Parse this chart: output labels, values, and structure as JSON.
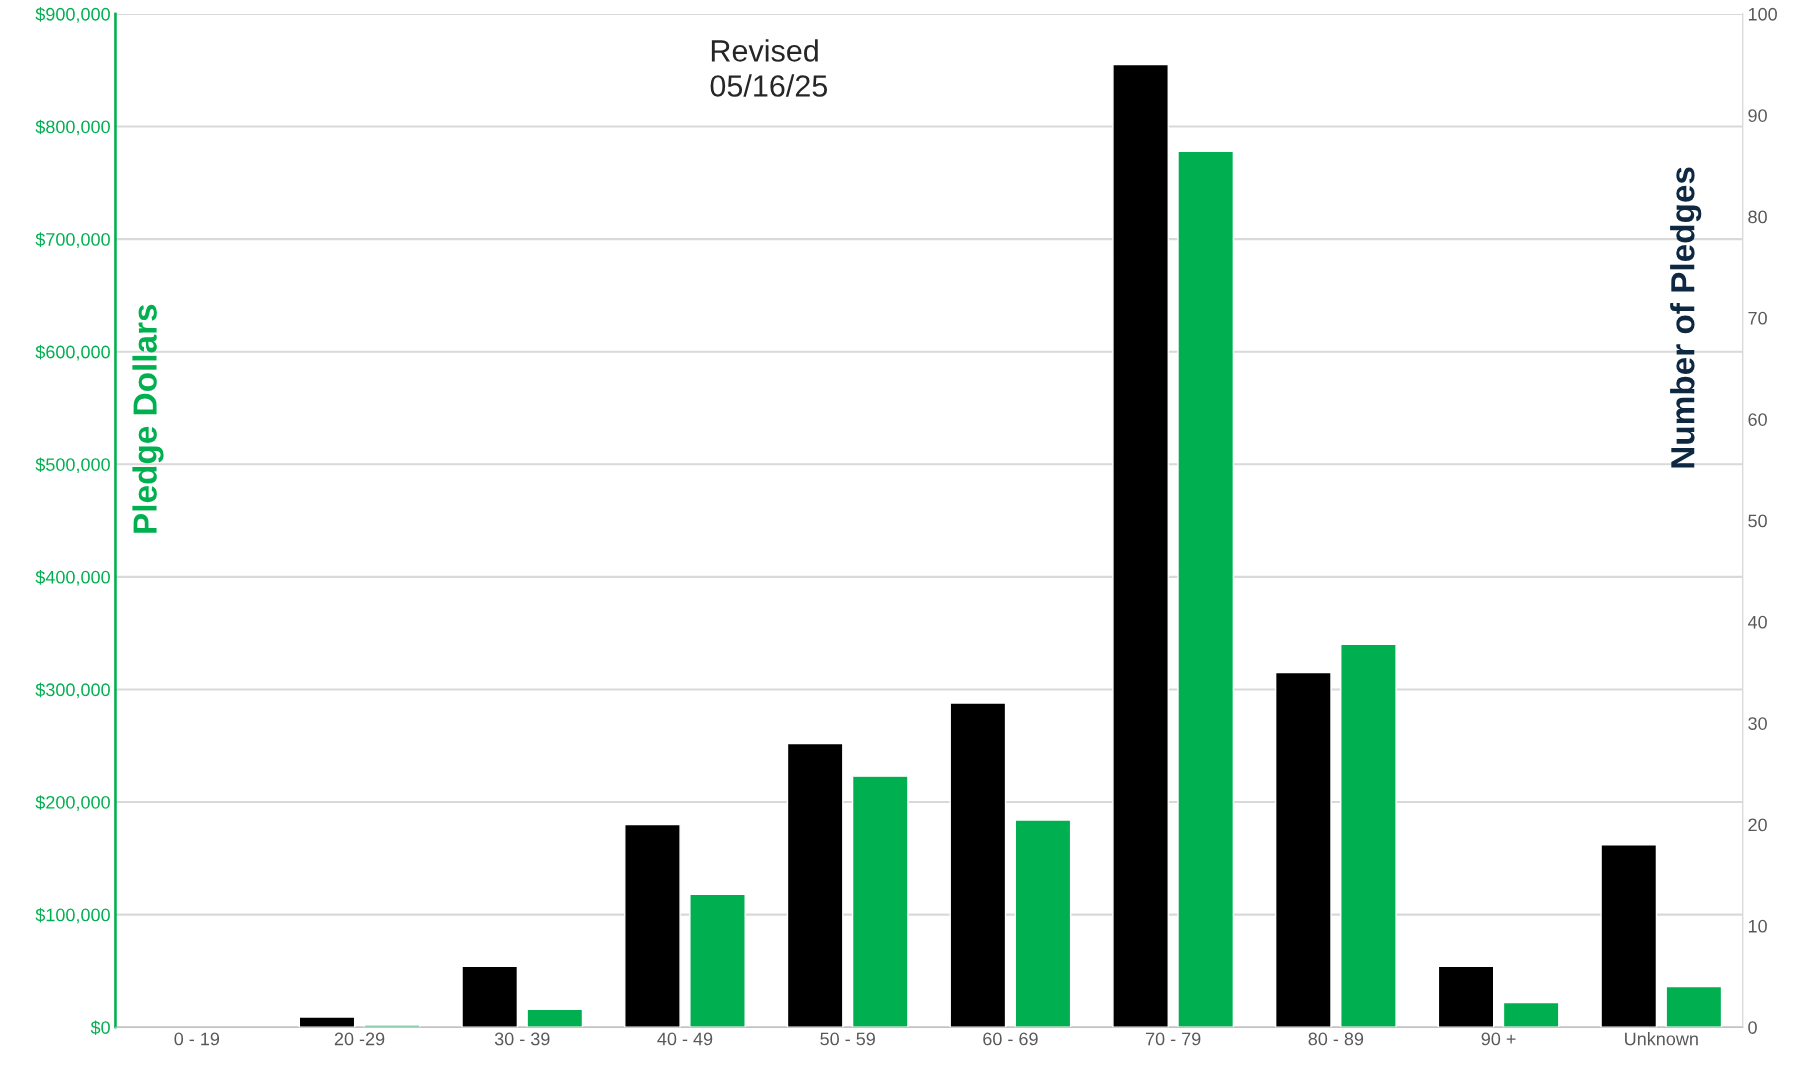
{
  "chart_data": {
    "type": "bar",
    "categories": [
      "0 - 19",
      "20 -29",
      "30 - 39",
      "40 - 49",
      "50 - 59",
      "60 - 69",
      "70 - 79",
      "80 - 89",
      "90 +",
      "Unknown"
    ],
    "series": [
      {
        "color": "#000000",
        "axis": "y2",
        "values": [
          null,
          1,
          6,
          20,
          28,
          32,
          95,
          35,
          6,
          18
        ]
      },
      {
        "color": "#00b050",
        "axis": "y",
        "values": [
          null,
          2000,
          16000,
          118000,
          223000,
          184000,
          778000,
          340000,
          22000,
          36000
        ]
      }
    ],
    "ylabel": "Pledge Dollars",
    "y2label": "Number of Pledges",
    "ylim": [
      0,
      900000
    ],
    "yticks": [
      {
        "value": 0,
        "label": "$0"
      },
      {
        "value": 100000,
        "label": "$100,000"
      },
      {
        "value": 200000,
        "label": "$200,000"
      },
      {
        "value": 300000,
        "label": "$300,000"
      },
      {
        "value": 400000,
        "label": "$400,000"
      },
      {
        "value": 500000,
        "label": "$500,000"
      },
      {
        "value": 600000,
        "label": "$600,000"
      },
      {
        "value": 700000,
        "label": "$700,000"
      },
      {
        "value": 800000,
        "label": "$800,000"
      },
      {
        "value": 900000,
        "label": "$900,000"
      }
    ],
    "y2lim": [
      0,
      100
    ],
    "y2ticks": [
      0,
      10,
      20,
      30,
      40,
      50,
      60,
      70,
      80,
      90,
      100
    ],
    "grid": "y",
    "annotations": [
      "Revised\n05/16/25"
    ]
  }
}
